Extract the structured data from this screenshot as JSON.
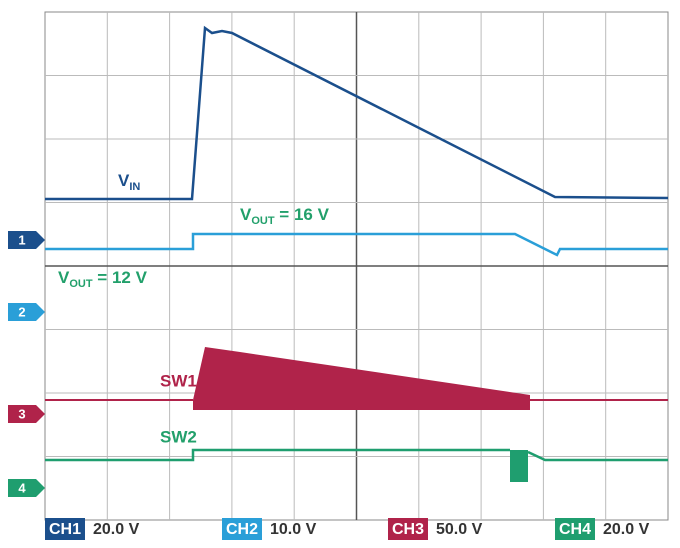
{
  "labels": {
    "vin": {
      "main": "V",
      "sub": "IN"
    },
    "vout16": {
      "main": "V",
      "sub": "OUT",
      "rest": " = 16 V"
    },
    "vout12": {
      "main": "V",
      "sub": "OUT",
      "rest": " = 12 V"
    },
    "sw1": "SW1",
    "sw2": "SW2"
  },
  "markers": [
    "1",
    "2",
    "3",
    "4"
  ],
  "footer": [
    {
      "channel": "CH1",
      "scale": "20.0 V"
    },
    {
      "channel": "CH2",
      "scale": "10.0 V"
    },
    {
      "channel": "CH3",
      "scale": "50.0 V"
    },
    {
      "channel": "CH4",
      "scale": "20.0 V"
    }
  ]
}
